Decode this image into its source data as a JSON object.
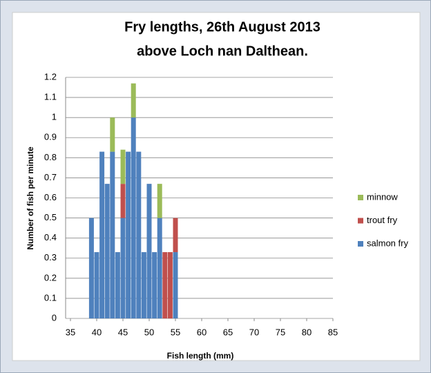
{
  "chart_data": {
    "type": "bar",
    "stacked": true,
    "title": [
      "Fry lengths, 26th August 2013",
      "above Loch nan Dalthean."
    ],
    "x_label": "Fish length (mm)",
    "y_label": "Number of fish per minute",
    "x": [
      39,
      40,
      41,
      42,
      43,
      44,
      45,
      46,
      47,
      48,
      49,
      50,
      51,
      52,
      53,
      54,
      55
    ],
    "series": [
      {
        "name": "salmon fry",
        "color": "#4f81bd",
        "values": [
          0.5,
          0.33,
          0.83,
          0.67,
          0.83,
          0.33,
          0.5,
          0.83,
          1,
          0.83,
          0.33,
          0.67,
          0.33,
          0.5,
          null,
          null,
          0.33
        ]
      },
      {
        "name": "trout fry",
        "color": "#c0504d",
        "values": [
          null,
          null,
          null,
          null,
          null,
          null,
          0.17,
          null,
          null,
          null,
          null,
          null,
          null,
          null,
          0.33,
          0.33,
          0.17
        ]
      },
      {
        "name": "minnow",
        "color": "#9bbb59",
        "values": [
          null,
          null,
          null,
          null,
          0.17,
          null,
          0.17,
          null,
          0.17,
          null,
          null,
          null,
          null,
          0.17,
          null,
          null,
          null
        ]
      }
    ],
    "xlim": [
      35,
      85
    ],
    "xticks": [
      35,
      40,
      45,
      50,
      55,
      60,
      65,
      70,
      75,
      80,
      85
    ],
    "ylim": [
      0,
      1.2
    ],
    "yticks": [
      0,
      0.1,
      0.2,
      0.3,
      0.4,
      0.5,
      0.6,
      0.7,
      0.8,
      0.9,
      1,
      1.1,
      1.2
    ],
    "grid": true,
    "legend": "right"
  }
}
